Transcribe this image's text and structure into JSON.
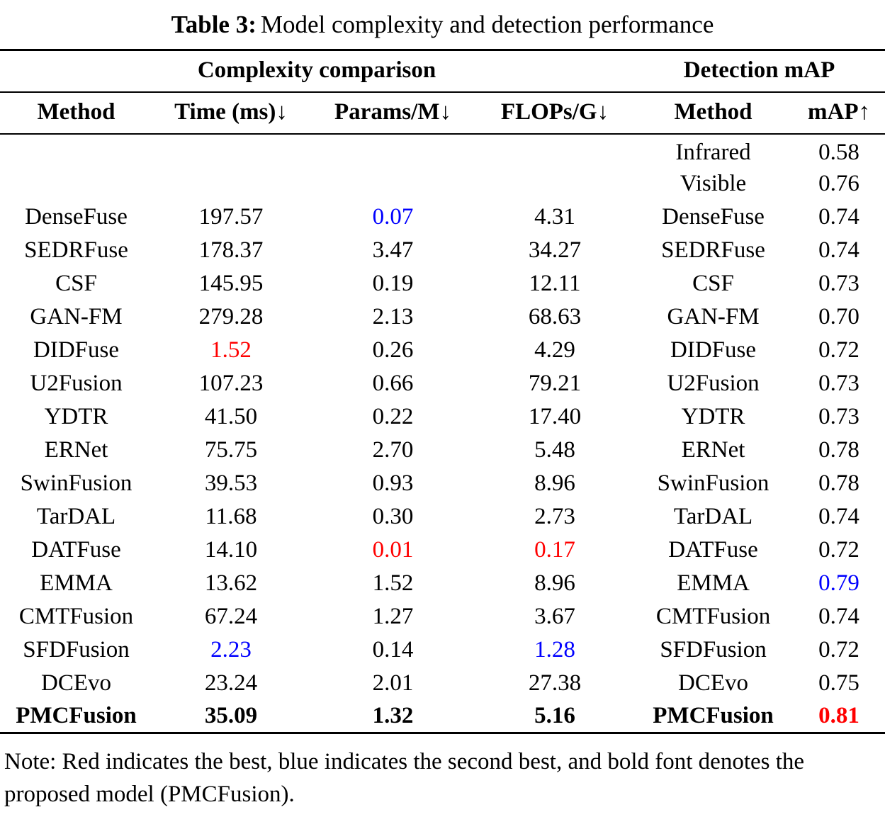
{
  "colors": {
    "best": "#ff0000",
    "second": "#0000ff"
  },
  "title": {
    "label": "Table 3:",
    "caption": "Model complexity and detection performance"
  },
  "table": {
    "group_headers": [
      {
        "label": "Complexity comparison",
        "span": 4
      },
      {
        "label": "Detection mAP",
        "span": 2
      }
    ],
    "columns": [
      "Method",
      "Time (ms)↓",
      "Params/M↓",
      "FLOPs/G↓",
      "Method",
      "mAP↑"
    ],
    "rows": [
      [
        {
          "t": ""
        },
        {
          "t": ""
        },
        {
          "t": ""
        },
        {
          "t": ""
        },
        {
          "t": "Infrared"
        },
        {
          "t": "0.58"
        }
      ],
      [
        {
          "t": ""
        },
        {
          "t": ""
        },
        {
          "t": ""
        },
        {
          "t": ""
        },
        {
          "t": "Visible"
        },
        {
          "t": "0.76"
        }
      ],
      [
        {
          "t": "DenseFuse"
        },
        {
          "t": "197.57"
        },
        {
          "t": "0.07",
          "s": "blue"
        },
        {
          "t": "4.31"
        },
        {
          "t": "DenseFuse"
        },
        {
          "t": "0.74"
        }
      ],
      [
        {
          "t": "SEDRFuse"
        },
        {
          "t": "178.37"
        },
        {
          "t": "3.47"
        },
        {
          "t": "34.27"
        },
        {
          "t": "SEDRFuse"
        },
        {
          "t": "0.74"
        }
      ],
      [
        {
          "t": "CSF"
        },
        {
          "t": "145.95"
        },
        {
          "t": "0.19"
        },
        {
          "t": "12.11"
        },
        {
          "t": "CSF"
        },
        {
          "t": "0.73"
        }
      ],
      [
        {
          "t": "GAN-FM"
        },
        {
          "t": "279.28"
        },
        {
          "t": "2.13"
        },
        {
          "t": "68.63"
        },
        {
          "t": "GAN-FM"
        },
        {
          "t": "0.70"
        }
      ],
      [
        {
          "t": "DIDFuse"
        },
        {
          "t": "1.52",
          "s": "red"
        },
        {
          "t": "0.26"
        },
        {
          "t": "4.29"
        },
        {
          "t": "DIDFuse"
        },
        {
          "t": "0.72"
        }
      ],
      [
        {
          "t": "U2Fusion"
        },
        {
          "t": "107.23"
        },
        {
          "t": "0.66"
        },
        {
          "t": "79.21"
        },
        {
          "t": "U2Fusion"
        },
        {
          "t": "0.73"
        }
      ],
      [
        {
          "t": "YDTR"
        },
        {
          "t": "41.50"
        },
        {
          "t": "0.22"
        },
        {
          "t": "17.40"
        },
        {
          "t": "YDTR"
        },
        {
          "t": "0.73"
        }
      ],
      [
        {
          "t": "ERNet"
        },
        {
          "t": "75.75"
        },
        {
          "t": "2.70"
        },
        {
          "t": "5.48"
        },
        {
          "t": "ERNet"
        },
        {
          "t": "0.78"
        }
      ],
      [
        {
          "t": "SwinFusion"
        },
        {
          "t": "39.53"
        },
        {
          "t": "0.93"
        },
        {
          "t": "8.96"
        },
        {
          "t": "SwinFusion"
        },
        {
          "t": "0.78"
        }
      ],
      [
        {
          "t": "TarDAL"
        },
        {
          "t": "11.68"
        },
        {
          "t": "0.30"
        },
        {
          "t": "2.73"
        },
        {
          "t": "TarDAL"
        },
        {
          "t": "0.74"
        }
      ],
      [
        {
          "t": "DATFuse"
        },
        {
          "t": "14.10"
        },
        {
          "t": "0.01",
          "s": "red"
        },
        {
          "t": "0.17",
          "s": "red"
        },
        {
          "t": "DATFuse"
        },
        {
          "t": "0.72"
        }
      ],
      [
        {
          "t": "EMMA"
        },
        {
          "t": "13.62"
        },
        {
          "t": "1.52"
        },
        {
          "t": "8.96"
        },
        {
          "t": "EMMA"
        },
        {
          "t": "0.79",
          "s": "blue"
        }
      ],
      [
        {
          "t": "CMTFusion"
        },
        {
          "t": "67.24"
        },
        {
          "t": "1.27"
        },
        {
          "t": "3.67"
        },
        {
          "t": "CMTFusion"
        },
        {
          "t": "0.74"
        }
      ],
      [
        {
          "t": "SFDFusion"
        },
        {
          "t": "2.23",
          "s": "blue"
        },
        {
          "t": "0.14"
        },
        {
          "t": "1.28",
          "s": "blue"
        },
        {
          "t": "SFDFusion"
        },
        {
          "t": "0.72"
        }
      ],
      [
        {
          "t": "DCEvo"
        },
        {
          "t": "23.24"
        },
        {
          "t": "2.01"
        },
        {
          "t": "27.38"
        },
        {
          "t": "DCEvo"
        },
        {
          "t": "0.75"
        }
      ],
      [
        {
          "t": "PMCFusion",
          "s": "bold"
        },
        {
          "t": "35.09",
          "s": "bold"
        },
        {
          "t": "1.32",
          "s": "bold"
        },
        {
          "t": "5.16",
          "s": "bold"
        },
        {
          "t": "PMCFusion",
          "s": "bold"
        },
        {
          "t": "0.81",
          "s": "red bold"
        }
      ]
    ]
  },
  "note": {
    "text": "Note: Red indicates the best, blue indicates the second best, and bold font denotes the proposed model (PMCFusion)."
  }
}
